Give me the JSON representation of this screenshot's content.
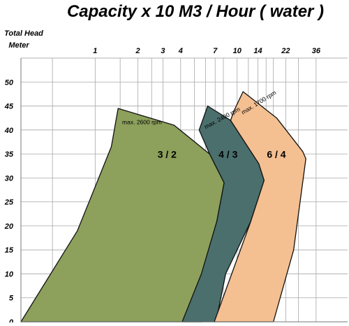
{
  "chart_data": {
    "type": "area",
    "title": "Capacity  x  10 M3 / Hour ( water )",
    "ylabel": [
      "Total Head",
      "Meter"
    ],
    "xlabel": "",
    "x_scale": "log",
    "xlim": [
      0.3,
      60
    ],
    "ylim": [
      0,
      55
    ],
    "grid": true,
    "x_tick_labels": [
      "1",
      "2",
      "3",
      "4",
      "7",
      "10",
      "14",
      "22",
      "36"
    ],
    "x_ticks": [
      1,
      2,
      3,
      4,
      7,
      10,
      14,
      22,
      36
    ],
    "x_gridlines": [
      0.5,
      1,
      1.5,
      2,
      2.5,
      3,
      4,
      5,
      6,
      7,
      8,
      10,
      12,
      14,
      16,
      18,
      22,
      27,
      36
    ],
    "y_ticks": [
      0,
      5,
      10,
      15,
      20,
      25,
      30,
      35,
      40,
      45,
      50
    ],
    "series": [
      {
        "name": "3 / 2",
        "annotation": "max. 2600 rpm",
        "color": "#8da05c",
        "points": [
          [
            0.3,
            0
          ],
          [
            0.75,
            19
          ],
          [
            1.3,
            36.5
          ],
          [
            1.45,
            44.5
          ],
          [
            3.6,
            41
          ],
          [
            6.4,
            35
          ],
          [
            8.1,
            29
          ],
          [
            7.2,
            21
          ],
          [
            5.7,
            0
          ]
        ]
      },
      {
        "name": "4 / 3",
        "annotation": "max. 2400 rpm",
        "color": "#4a6f6c",
        "points": [
          [
            4.1,
            0
          ],
          [
            5.6,
            10
          ],
          [
            7.2,
            21
          ],
          [
            8.1,
            29
          ],
          [
            6.4,
            35
          ],
          [
            5.4,
            40
          ],
          [
            6.2,
            45
          ],
          [
            9,
            42
          ],
          [
            14.2,
            33
          ],
          [
            15.5,
            29.5
          ],
          [
            12.5,
            21
          ],
          [
            8.3,
            10
          ],
          [
            7.1,
            0
          ]
        ]
      },
      {
        "name": "6 / 4",
        "annotation": "max. 1700 rpm",
        "color": "#f4bf91",
        "points": [
          [
            6.9,
            0
          ],
          [
            12.5,
            21
          ],
          [
            15.5,
            29.5
          ],
          [
            14.2,
            33
          ],
          [
            9,
            42
          ],
          [
            9.5,
            44
          ],
          [
            11,
            48
          ],
          [
            19,
            42.5
          ],
          [
            29,
            35.5
          ],
          [
            30.5,
            34
          ],
          [
            25,
            15
          ],
          [
            18,
            0
          ]
        ]
      }
    ]
  }
}
